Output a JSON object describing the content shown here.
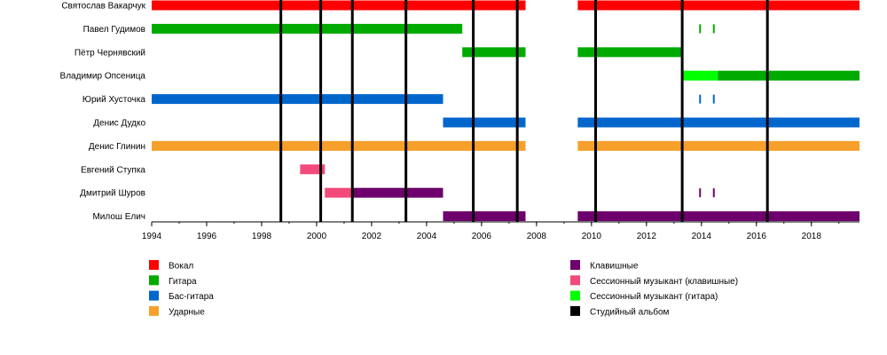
{
  "chart_data": {
    "type": "timeline",
    "xlim": [
      1994,
      2019.75
    ],
    "ticks": [
      1994,
      1996,
      1998,
      2000,
      2002,
      2004,
      2006,
      2008,
      2010,
      2012,
      2014,
      2016,
      2018
    ],
    "members": [
      "Святослав Вакарчук",
      "Павел Гудимов",
      "Пётр Чернявский",
      "Владимир Опсеница",
      "Юрий Хусточка",
      "Денис Дудко",
      "Денис Глинин",
      "Евгений Ступка",
      "Дмитрий Шуров",
      "Милош Елич"
    ],
    "roles": {
      "vocals": {
        "label": "Вокал",
        "color": "#ff0000"
      },
      "guitar": {
        "label": "Гитара",
        "color": "#00aa00"
      },
      "bass": {
        "label": "Бас-гитара",
        "color": "#0066cc"
      },
      "drums": {
        "label": "Ударные",
        "color": "#f6a02b"
      },
      "keys": {
        "label": "Клавишные",
        "color": "#6d006d"
      },
      "session_keys": {
        "label": "Сессионный музыкант (клавишные)",
        "color": "#f24a7a"
      },
      "session_guitar": {
        "label": "Сессионный музыкант (гитара)",
        "color": "#00ff00"
      },
      "album": {
        "label": "Студийный альбом",
        "color": "#000000"
      }
    },
    "legend_left": [
      "vocals",
      "guitar",
      "bass",
      "drums"
    ],
    "legend_right": [
      "keys",
      "session_keys",
      "session_guitar",
      "album"
    ],
    "bars": [
      {
        "member": 0,
        "role": "vocals",
        "start": 1994.0,
        "end": 2007.6
      },
      {
        "member": 0,
        "role": "vocals",
        "start": 2009.5,
        "end": 2019.75
      },
      {
        "member": 1,
        "role": "guitar",
        "start": 1994.0,
        "end": 2005.3
      },
      {
        "member": 2,
        "role": "guitar",
        "start": 2005.3,
        "end": 2007.6
      },
      {
        "member": 2,
        "role": "guitar",
        "start": 2009.5,
        "end": 2013.3
      },
      {
        "member": 3,
        "role": "session_guitar",
        "start": 2013.3,
        "end": 2014.6
      },
      {
        "member": 3,
        "role": "guitar",
        "start": 2014.6,
        "end": 2019.75
      },
      {
        "member": 4,
        "role": "bass",
        "start": 1994.0,
        "end": 2004.6
      },
      {
        "member": 5,
        "role": "bass",
        "start": 2004.6,
        "end": 2007.6
      },
      {
        "member": 5,
        "role": "bass",
        "start": 2009.5,
        "end": 2019.75
      },
      {
        "member": 6,
        "role": "drums",
        "start": 1994.0,
        "end": 2007.6
      },
      {
        "member": 6,
        "role": "drums",
        "start": 2009.5,
        "end": 2019.75
      },
      {
        "member": 7,
        "role": "session_keys",
        "start": 1999.4,
        "end": 2000.3
      },
      {
        "member": 8,
        "role": "session_keys",
        "start": 2000.3,
        "end": 2001.3
      },
      {
        "member": 8,
        "role": "keys",
        "start": 2001.3,
        "end": 2004.6
      },
      {
        "member": 9,
        "role": "keys",
        "start": 2004.6,
        "end": 2007.6
      },
      {
        "member": 9,
        "role": "keys",
        "start": 2009.5,
        "end": 2019.75
      }
    ],
    "marks": [
      {
        "member": 1,
        "role": "guitar",
        "x": 2013.95
      },
      {
        "member": 1,
        "role": "guitar",
        "x": 2014.45
      },
      {
        "member": 4,
        "role": "bass",
        "x": 2013.95
      },
      {
        "member": 4,
        "role": "bass",
        "x": 2014.45
      },
      {
        "member": 8,
        "role": "keys",
        "x": 2013.95
      },
      {
        "member": 8,
        "role": "keys",
        "x": 2014.45
      }
    ],
    "albums": [
      1998.7,
      2000.15,
      2001.3,
      2003.25,
      2005.7,
      2007.3,
      2010.15,
      2013.3,
      2016.4
    ]
  }
}
